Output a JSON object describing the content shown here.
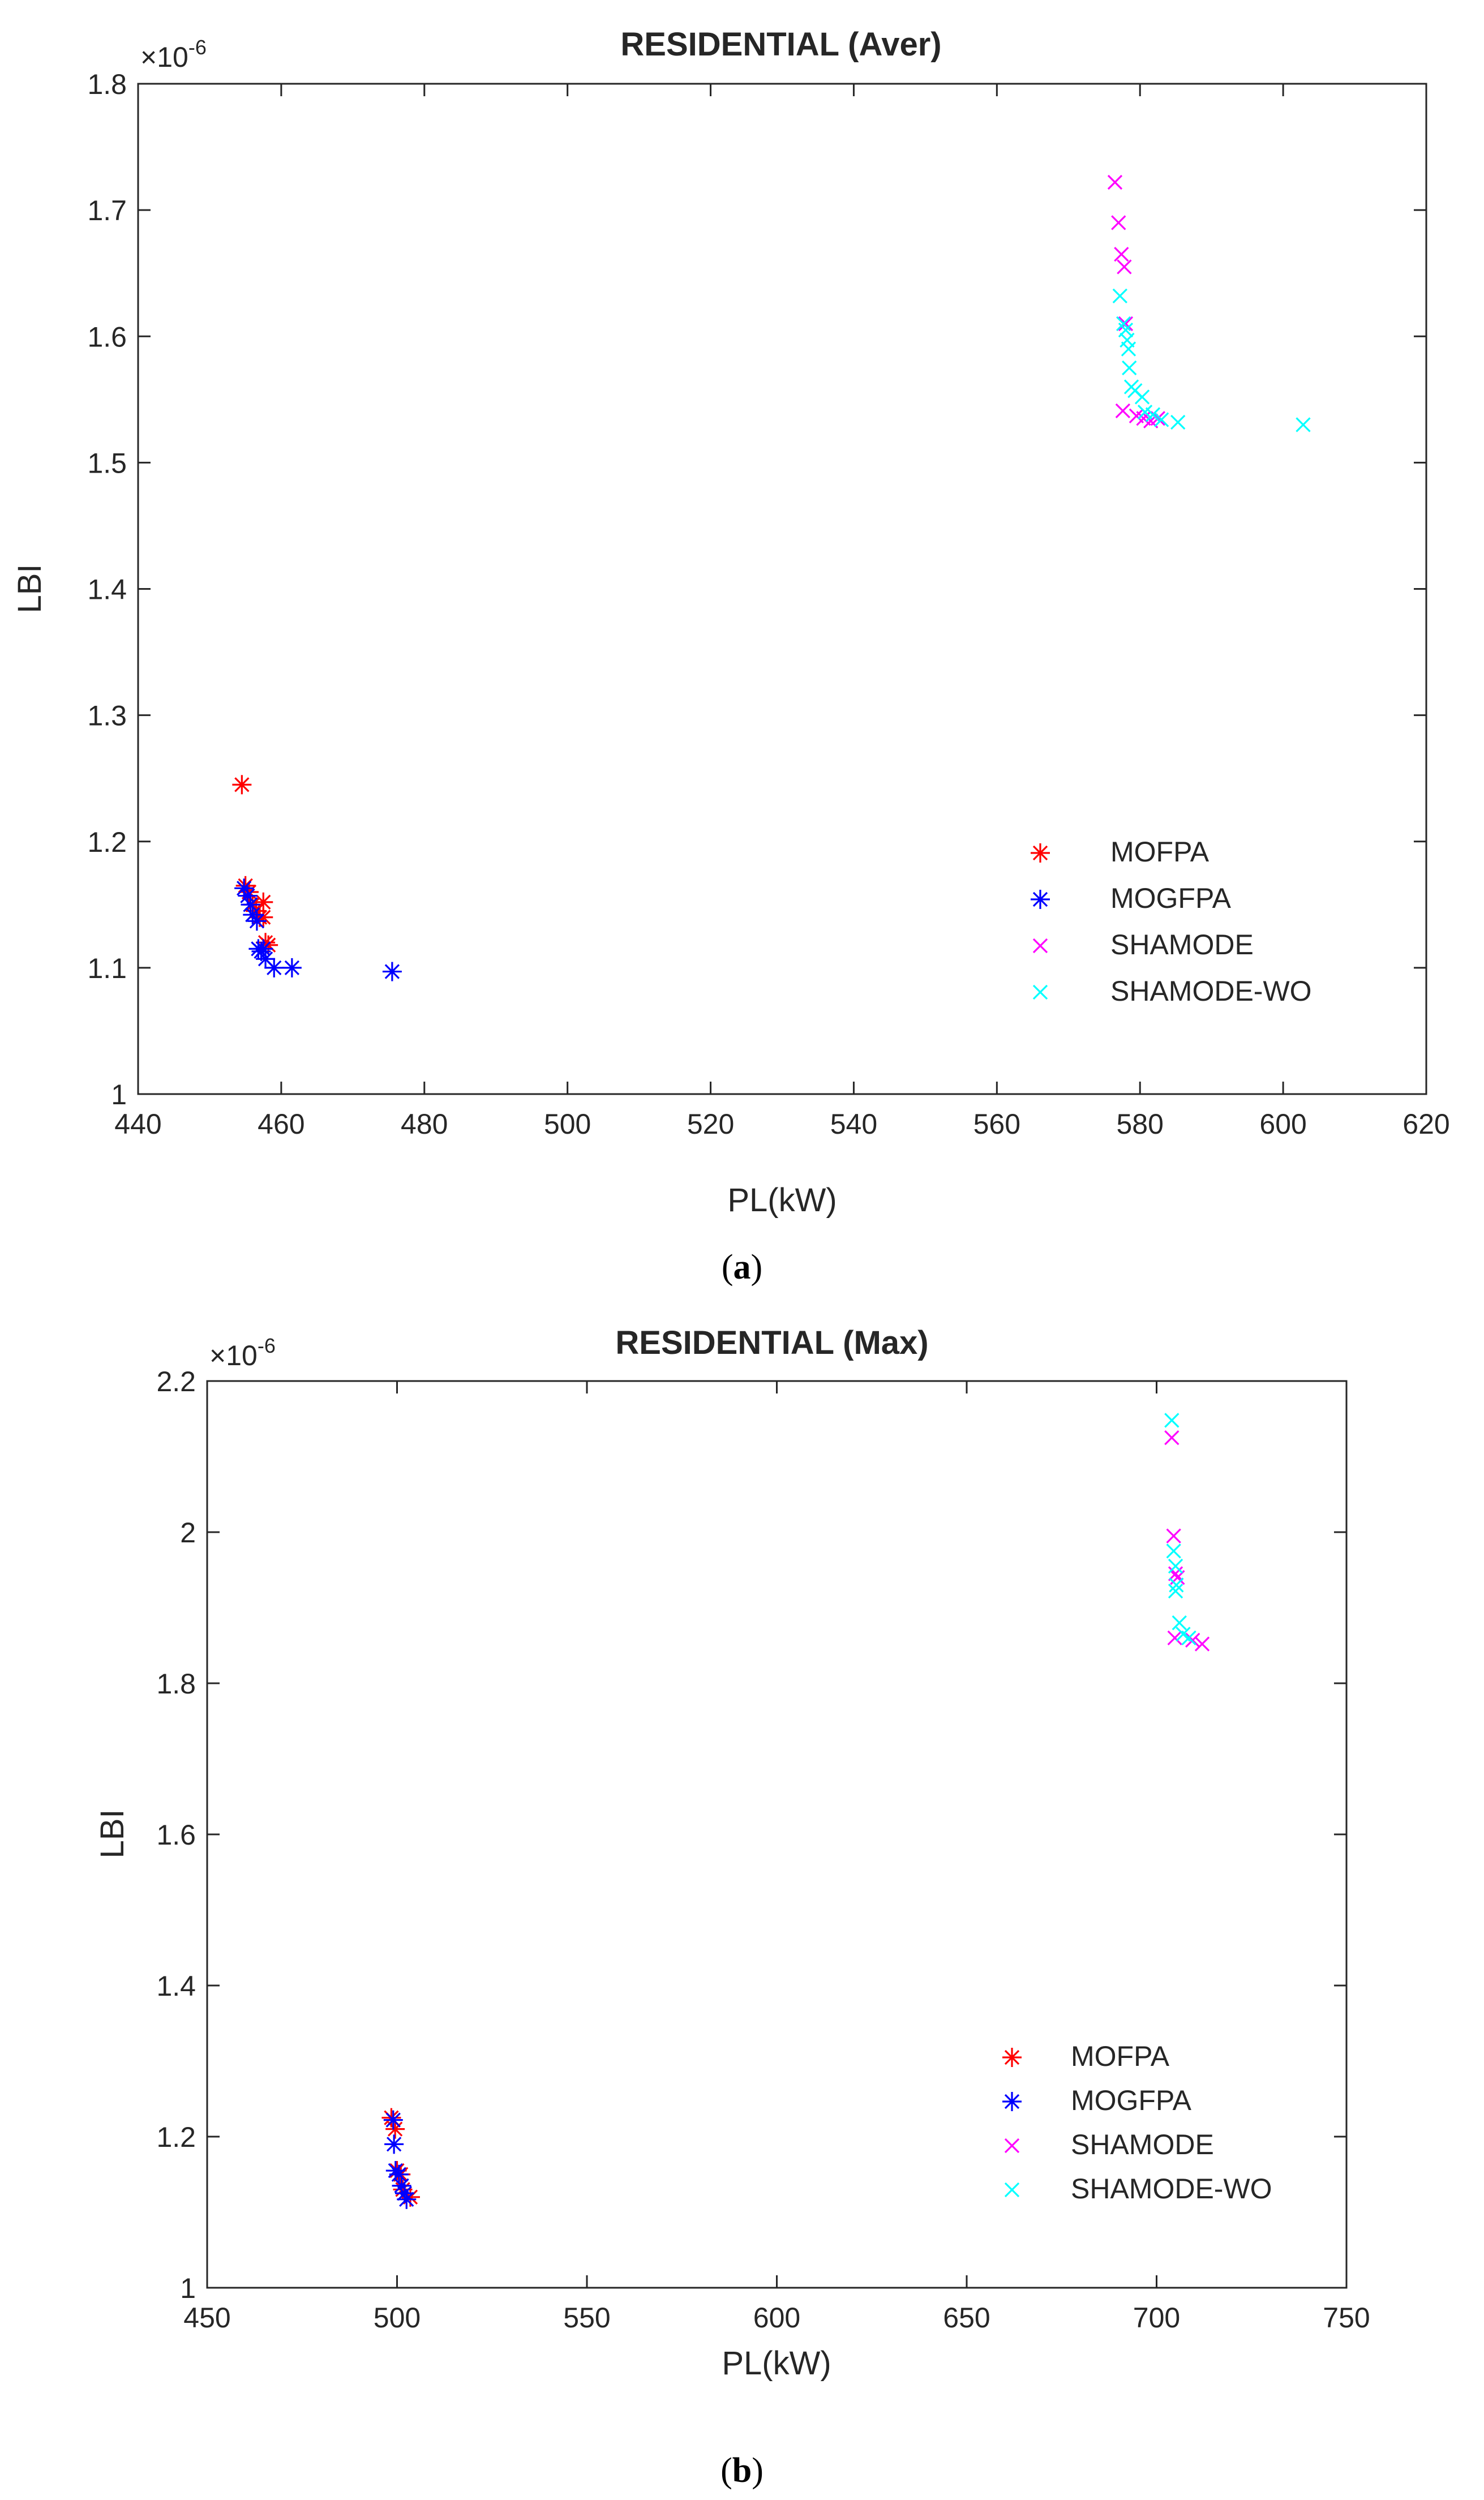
{
  "panels": [
    {
      "caption_open": "(",
      "caption_letter": "a",
      "caption_close": ")",
      "chart_data": {
        "type": "scatter",
        "title": "RESIDENTIAL (Aver)",
        "xlabel": "PL(kW)",
        "ylabel": "LBI",
        "exponent_base": "×10",
        "exponent_power": "-6",
        "xlim": [
          440,
          620
        ],
        "ylim": [
          1.0,
          1.8
        ],
        "xticks": [
          440,
          460,
          480,
          500,
          520,
          540,
          560,
          580,
          600,
          620
        ],
        "yticks": [
          "1",
          "1.1",
          "1.2",
          "1.3",
          "1.4",
          "1.5",
          "1.6",
          "1.7",
          "1.8"
        ],
        "grid": false,
        "legend_position": "bottom-right",
        "series": [
          {
            "name": "MOFPA",
            "marker": "asterisk",
            "color": "#ff0000",
            "points": [
              [
                454.5,
                1.245
              ],
              [
                455.0,
                1.165
              ],
              [
                455.5,
                1.16
              ],
              [
                456.0,
                1.15
              ],
              [
                456.5,
                1.145
              ],
              [
                457.0,
                1.14
              ],
              [
                457.5,
                1.152
              ],
              [
                457.5,
                1.14
              ],
              [
                457.8,
                1.12
              ],
              [
                458.2,
                1.118
              ]
            ]
          },
          {
            "name": "MOGFPA",
            "marker": "asterisk",
            "color": "#0000ff",
            "points": [
              [
                454.8,
                1.163
              ],
              [
                455.3,
                1.157
              ],
              [
                455.7,
                1.15
              ],
              [
                456.0,
                1.142
              ],
              [
                456.6,
                1.137
              ],
              [
                456.8,
                1.115
              ],
              [
                457.2,
                1.113
              ],
              [
                457.5,
                1.115
              ],
              [
                457.8,
                1.107
              ],
              [
                459.0,
                1.1
              ],
              [
                461.5,
                1.1
              ],
              [
                475.5,
                1.097
              ]
            ]
          },
          {
            "name": "SHAMODE",
            "marker": "x",
            "color": "#ff00ff",
            "points": [
              [
                576.5,
                1.722
              ],
              [
                577.0,
                1.69
              ],
              [
                577.4,
                1.665
              ],
              [
                577.8,
                1.655
              ],
              [
                578.0,
                1.61
              ],
              [
                577.6,
                1.541
              ],
              [
                579.5,
                1.537
              ],
              [
                580.5,
                1.535
              ],
              [
                581.5,
                1.533
              ],
              [
                582.5,
                1.535
              ]
            ]
          },
          {
            "name": "SHAMODE-WO",
            "marker": "x",
            "color": "#00ffff",
            "points": [
              [
                577.2,
                1.632
              ],
              [
                577.7,
                1.61
              ],
              [
                578.0,
                1.605
              ],
              [
                578.2,
                1.597
              ],
              [
                578.4,
                1.59
              ],
              [
                578.5,
                1.575
              ],
              [
                578.8,
                1.56
              ],
              [
                579.3,
                1.557
              ],
              [
                580.3,
                1.552
              ],
              [
                580.7,
                1.54
              ],
              [
                581.8,
                1.538
              ],
              [
                583.0,
                1.534
              ],
              [
                585.3,
                1.532
              ],
              [
                602.8,
                1.53
              ]
            ]
          }
        ]
      }
    },
    {
      "caption_open": "(",
      "caption_letter": "b",
      "caption_close": ")",
      "chart_data": {
        "type": "scatter",
        "title": "RESIDENTIAL (Max)",
        "xlabel": "PL(kW)",
        "ylabel": "LBI",
        "exponent_base": "×10",
        "exponent_power": "-6",
        "xlim": [
          450,
          750
        ],
        "ylim": [
          1.0,
          2.2
        ],
        "xticks": [
          450,
          500,
          550,
          600,
          650,
          700,
          750
        ],
        "yticks": [
          "1",
          "1.2",
          "1.4",
          "1.6",
          "1.8",
          "2",
          "2.2"
        ],
        "grid": false,
        "legend_position": "bottom-right",
        "series": [
          {
            "name": "MOFPA",
            "marker": "asterisk",
            "color": "#ff0000",
            "points": [
              [
                498.5,
                1.225
              ],
              [
                499.5,
                1.21
              ],
              [
                500.0,
                1.155
              ],
              [
                501.0,
                1.15
              ],
              [
                501.5,
                1.13
              ],
              [
                503.5,
                1.12
              ]
            ]
          },
          {
            "name": "MOGFPA",
            "marker": "asterisk",
            "color": "#0000ff",
            "points": [
              [
                499.0,
                1.222
              ],
              [
                499.2,
                1.19
              ],
              [
                499.6,
                1.155
              ],
              [
                500.5,
                1.15
              ],
              [
                501.2,
                1.135
              ],
              [
                502.0,
                1.125
              ],
              [
                502.5,
                1.117
              ]
            ]
          },
          {
            "name": "SHAMODE",
            "marker": "x",
            "color": "#ff00ff",
            "points": [
              [
                704.0,
                2.125
              ],
              [
                704.5,
                1.995
              ],
              [
                705.0,
                1.945
              ],
              [
                705.5,
                1.94
              ],
              [
                704.8,
                1.86
              ],
              [
                709.5,
                1.857
              ],
              [
                712.0,
                1.852
              ]
            ]
          },
          {
            "name": "SHAMODE-WO",
            "marker": "x",
            "color": "#00ffff",
            "points": [
              [
                704.0,
                2.148
              ],
              [
                704.5,
                1.975
              ],
              [
                705.0,
                1.955
              ],
              [
                705.2,
                1.93
              ],
              [
                705.0,
                1.922
              ],
              [
                706.0,
                1.88
              ],
              [
                707.0,
                1.865
              ],
              [
                708.5,
                1.86
              ]
            ]
          }
        ]
      }
    }
  ]
}
